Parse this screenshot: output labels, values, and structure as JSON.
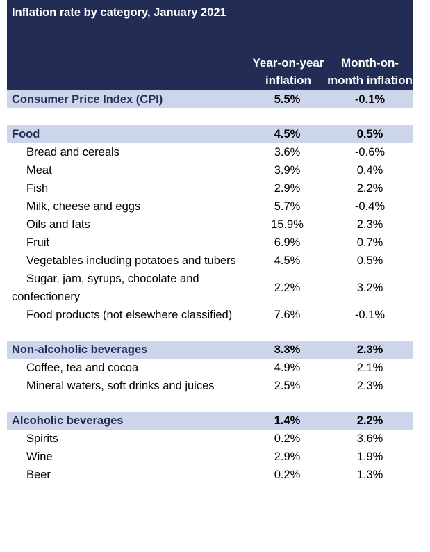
{
  "title": "Inflation rate by category, January 2021",
  "columns": [
    "Year-on-year inflation",
    "Month-on-month inflation"
  ],
  "colors": {
    "header": "#222c55",
    "band": "#cdd5ea"
  },
  "rows": [
    {
      "label": "Consumer Price Index (CPI)",
      "yoy": "5.5%",
      "mom": "-0.1%",
      "type": "band"
    },
    {
      "type": "gap"
    },
    {
      "label": "Food",
      "yoy": "4.5%",
      "mom": "0.5%",
      "type": "band"
    },
    {
      "label": "Bread and cereals",
      "yoy": "3.6%",
      "mom": "-0.6%"
    },
    {
      "label": "Meat",
      "yoy": "3.9%",
      "mom": "0.4%"
    },
    {
      "label": "Fish",
      "yoy": "2.9%",
      "mom": "2.2%"
    },
    {
      "label": "Milk, cheese and eggs",
      "yoy": "5.7%",
      "mom": "-0.4%"
    },
    {
      "label": "Oils and fats",
      "yoy": "15.9%",
      "mom": "2.3%"
    },
    {
      "label": "Fruit",
      "yoy": "6.9%",
      "mom": "0.7%"
    },
    {
      "label": "Vegetables including potatoes and tubers",
      "yoy": "4.5%",
      "mom": "0.5%"
    },
    {
      "label": "Sugar, jam, syrups, chocolate and confectionery",
      "yoy": "2.2%",
      "mom": "3.2%"
    },
    {
      "label": "Food products (not elsewhere classified)",
      "yoy": "7.6%",
      "mom": "-0.1%"
    },
    {
      "type": "gap"
    },
    {
      "label": "Non-alcoholic beverages",
      "yoy": "3.3%",
      "mom": "2.3%",
      "type": "band"
    },
    {
      "label": "Coffee, tea and cocoa",
      "yoy": "4.9%",
      "mom": "2.1%"
    },
    {
      "label": "Mineral waters, soft drinks and juices",
      "yoy": "2.5%",
      "mom": "2.3%"
    },
    {
      "type": "gap"
    },
    {
      "label": "Alcoholic beverages",
      "yoy": "1.4%",
      "mom": "2.2%",
      "type": "band"
    },
    {
      "label": "Spirits",
      "yoy": "0.2%",
      "mom": "3.6%"
    },
    {
      "label": "Wine",
      "yoy": "2.9%",
      "mom": "1.9%"
    },
    {
      "label": "Beer",
      "yoy": "0.2%",
      "mom": "1.3%"
    }
  ]
}
